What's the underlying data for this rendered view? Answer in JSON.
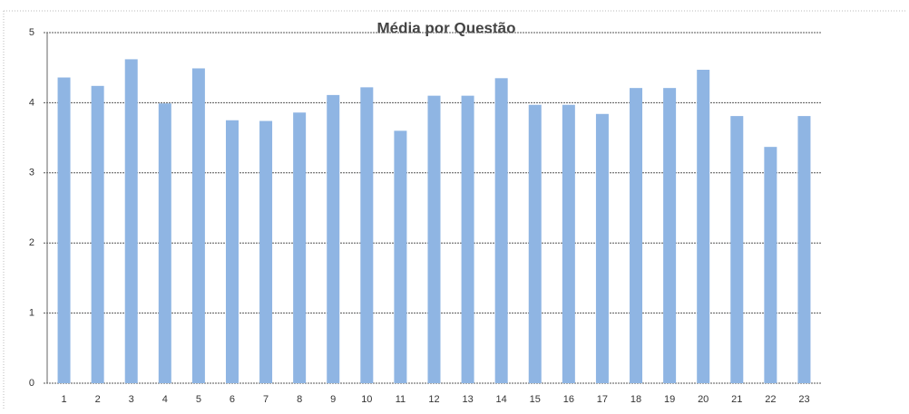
{
  "chart_data": {
    "type": "bar",
    "title": "Média por Questão",
    "categories": [
      "1",
      "2",
      "3",
      "4",
      "5",
      "6",
      "7",
      "8",
      "9",
      "10",
      "11",
      "12",
      "13",
      "14",
      "15",
      "16",
      "17",
      "18",
      "19",
      "20",
      "21",
      "22",
      "23"
    ],
    "values": [
      4.36,
      4.24,
      4.62,
      3.99,
      4.49,
      3.75,
      3.74,
      3.86,
      4.11,
      4.22,
      3.6,
      4.1,
      4.1,
      4.35,
      3.97,
      3.97,
      3.84,
      4.21,
      4.21,
      4.47,
      3.81,
      3.37,
      3.81
    ],
    "color": "#8fb5e3",
    "ylim": [
      0,
      5
    ],
    "yticks": [
      0,
      1,
      2,
      3,
      4,
      5
    ],
    "grid": true
  }
}
